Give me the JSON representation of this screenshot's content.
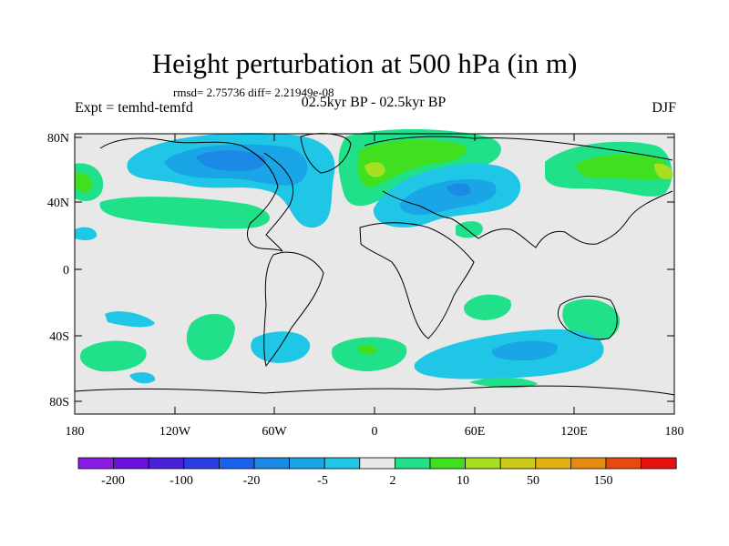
{
  "header": {
    "title": "Height perturbation at 500 hPa (in m)",
    "stats": "rmsd= 2.75736 diff= 2.21949e-08",
    "experiment": "Expt = temhd-temfd",
    "period": "02.5kyr BP - 02.5kyr BP",
    "season": "DJF"
  },
  "axes": {
    "y_ticks": [
      "80N",
      "40N",
      "0",
      "40S",
      "80S"
    ],
    "x_ticks": [
      "180",
      "120W",
      "60W",
      "0",
      "60E",
      "120E",
      "180"
    ]
  },
  "colorbar": {
    "colors": [
      "#8c1be6",
      "#6a12e0",
      "#4a20d8",
      "#2a3ee6",
      "#1a62ee",
      "#1a8ae6",
      "#1aa6e6",
      "#20c6e6",
      "#e8e8e8",
      "#20e08a",
      "#40e020",
      "#a6e020",
      "#cccc18",
      "#e6b010",
      "#e68a10",
      "#e64a10",
      "#e61010"
    ],
    "labels": [
      "-200",
      "-100",
      "-20",
      "-5",
      "2",
      "10",
      "50",
      "150"
    ]
  },
  "palette": {
    "background": "#e8e8e8",
    "neg_light": "#20c6e6",
    "neg_mid": "#1aa6e6",
    "neg_dark": "#1a8ae6",
    "pos_light": "#20e08a",
    "pos_mid": "#40e020",
    "pos_strong": "#a6e020"
  }
}
